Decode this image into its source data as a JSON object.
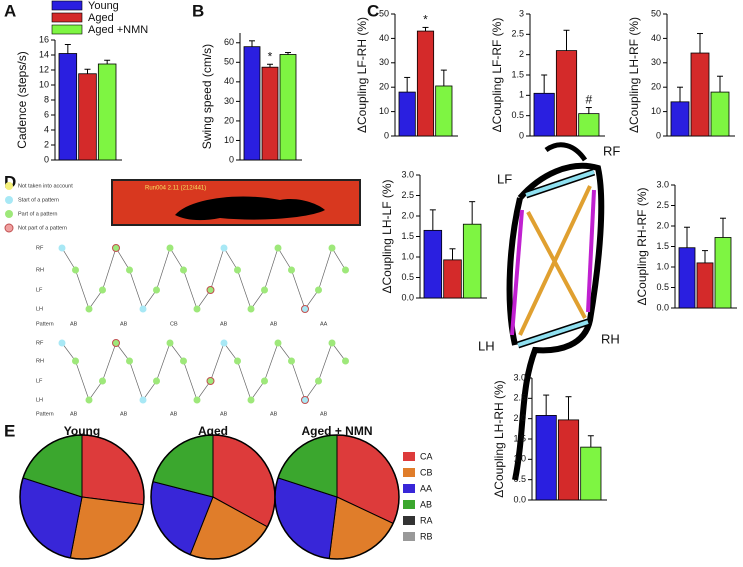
{
  "panel_labels": [
    "A",
    "B",
    "C",
    "D",
    "E"
  ],
  "diagram_labels": [
    "LF",
    "RF",
    "LH",
    "RH"
  ],
  "gait_panel": {
    "legend": [
      "Not taken into account",
      "Start of a pattern",
      "Part of a pattern",
      "Not part of a pattern"
    ],
    "video_label": "Run004 2.11 (212/441)",
    "rows": [
      "RF",
      "RH",
      "LF",
      "LH",
      "Pattern"
    ],
    "patterns_top": [
      "AB",
      "AB",
      "CB",
      "AB",
      "AB",
      "AA"
    ],
    "patterns_bottom": [
      "AB",
      "AB",
      "AB",
      "AB",
      "AB",
      "AB"
    ]
  },
  "chart_data": [
    {
      "type": "bar",
      "ylabel": "Cadence (steps/s)",
      "series": [
        {
          "name": "Young",
          "color": "#2a1fe0",
          "values": [
            14.2
          ],
          "errors": [
            1.2
          ]
        },
        {
          "name": "Aged",
          "color": "#d42a2a",
          "values": [
            11.5
          ],
          "errors": [
            0.6
          ]
        },
        {
          "name": "Aged +NMN",
          "color": "#7ef542",
          "values": [
            12.8
          ],
          "errors": [
            0.5
          ]
        }
      ],
      "ylim": [
        0,
        16
      ],
      "yticks": [
        0,
        2,
        4,
        6,
        8,
        10,
        12,
        14,
        16
      ]
    },
    {
      "type": "bar",
      "ylabel": "Swing speed (cm/s)",
      "values": [
        58,
        47.5,
        54
      ],
      "errors": [
        3,
        1.5,
        1
      ],
      "colors": [
        "#2a1fe0",
        "#d42a2a",
        "#7ef542"
      ],
      "annotations": [
        null,
        "*",
        null
      ],
      "ylim": [
        0,
        65
      ],
      "yticks": [
        0,
        10,
        20,
        30,
        40,
        50,
        60
      ]
    },
    {
      "type": "bar",
      "ylabel": "ΔCoupling LF-RH (%)",
      "values": [
        18,
        43,
        20.5
      ],
      "errors": [
        6,
        1.5,
        6.5
      ],
      "colors": [
        "#2a1fe0",
        "#d42a2a",
        "#7ef542"
      ],
      "annotations": [
        null,
        "*",
        null
      ],
      "ylim": [
        0,
        50
      ],
      "yticks": [
        0,
        10,
        20,
        30,
        40,
        50
      ]
    },
    {
      "type": "bar",
      "ylabel": "ΔCoupling LF-RF (%)",
      "values": [
        1.05,
        2.1,
        0.55
      ],
      "errors": [
        0.45,
        0.5,
        0.15
      ],
      "colors": [
        "#2a1fe0",
        "#d42a2a",
        "#7ef542"
      ],
      "annotations": [
        null,
        null,
        "#"
      ],
      "ylim": [
        0,
        3
      ],
      "yticks": [
        0,
        0.5,
        1,
        1.5,
        2,
        2.5,
        3
      ]
    },
    {
      "type": "bar",
      "ylabel": "ΔCoupling LH-RF (%)",
      "values": [
        14,
        34,
        18
      ],
      "errors": [
        6,
        8,
        6.5
      ],
      "colors": [
        "#2a1fe0",
        "#d42a2a",
        "#7ef542"
      ],
      "ylim": [
        0,
        50
      ],
      "yticks": [
        0,
        10,
        20,
        30,
        40,
        50
      ]
    },
    {
      "type": "bar",
      "ylabel": "ΔCoupling LH-LF (%)",
      "values": [
        1.65,
        0.93,
        1.8
      ],
      "errors": [
        0.5,
        0.27,
        0.55
      ],
      "colors": [
        "#2a1fe0",
        "#d42a2a",
        "#7ef542"
      ],
      "ylim": [
        0,
        3
      ],
      "yticks": [
        {
          "value": 0,
          "label": "0.0"
        },
        {
          "value": 0.5,
          "label": "0.5"
        },
        {
          "value": 1,
          "label": "1.0"
        },
        {
          "value": 1.5,
          "label": "1.5"
        },
        {
          "value": 2,
          "label": "2.0"
        },
        {
          "value": 2.5,
          "label": "2.5"
        },
        {
          "value": 3,
          "label": "3.0"
        }
      ]
    },
    {
      "type": "bar",
      "ylabel": "ΔCoupling RH-RF (%)",
      "values": [
        1.47,
        1.1,
        1.72
      ],
      "errors": [
        0.5,
        0.3,
        0.47
      ],
      "colors": [
        "#2a1fe0",
        "#d42a2a",
        "#7ef542"
      ],
      "ylim": [
        0,
        3
      ],
      "yticks": [
        {
          "value": 0,
          "label": "0.0"
        },
        {
          "value": 0.5,
          "label": "0.5"
        },
        {
          "value": 1,
          "label": "1.0"
        },
        {
          "value": 1.5,
          "label": "1.5"
        },
        {
          "value": 2,
          "label": "2.0"
        },
        {
          "value": 2.5,
          "label": "2.5"
        },
        {
          "value": 3,
          "label": "3.0"
        }
      ]
    },
    {
      "type": "bar",
      "ylabel": "ΔCoupling LH-RH (%)",
      "values": [
        2.08,
        1.97,
        1.3
      ],
      "errors": [
        0.5,
        0.57,
        0.28
      ],
      "colors": [
        "#2a1fe0",
        "#d42a2a",
        "#7ef542"
      ],
      "ylim": [
        0,
        3
      ],
      "yticks": [
        {
          "value": 0,
          "label": "0.0"
        },
        {
          "value": 0.5,
          "label": "0.5"
        },
        {
          "value": 1,
          "label": "1.0"
        },
        {
          "value": 1.5,
          "label": "1.5"
        },
        {
          "value": 2,
          "label": "2.0"
        },
        {
          "value": 2.5,
          "label": "2.5"
        },
        {
          "value": 3,
          "label": "3.0"
        }
      ]
    },
    {
      "type": "pie",
      "title": "Young",
      "categories": [
        "CA",
        "CB",
        "AA",
        "AB",
        "RA",
        "RB"
      ],
      "colors": [
        "#dd3b3b",
        "#e07d2a",
        "#3826d8",
        "#3ba72e",
        "#333333",
        "#999999"
      ],
      "values": [
        27,
        26,
        27,
        20,
        0,
        0
      ]
    },
    {
      "type": "pie",
      "title": "Aged",
      "values": [
        33,
        23,
        23,
        21,
        0,
        0
      ]
    },
    {
      "type": "pie",
      "title": "Aged + NMN",
      "values": [
        32,
        20,
        28,
        20,
        0,
        0
      ]
    }
  ]
}
